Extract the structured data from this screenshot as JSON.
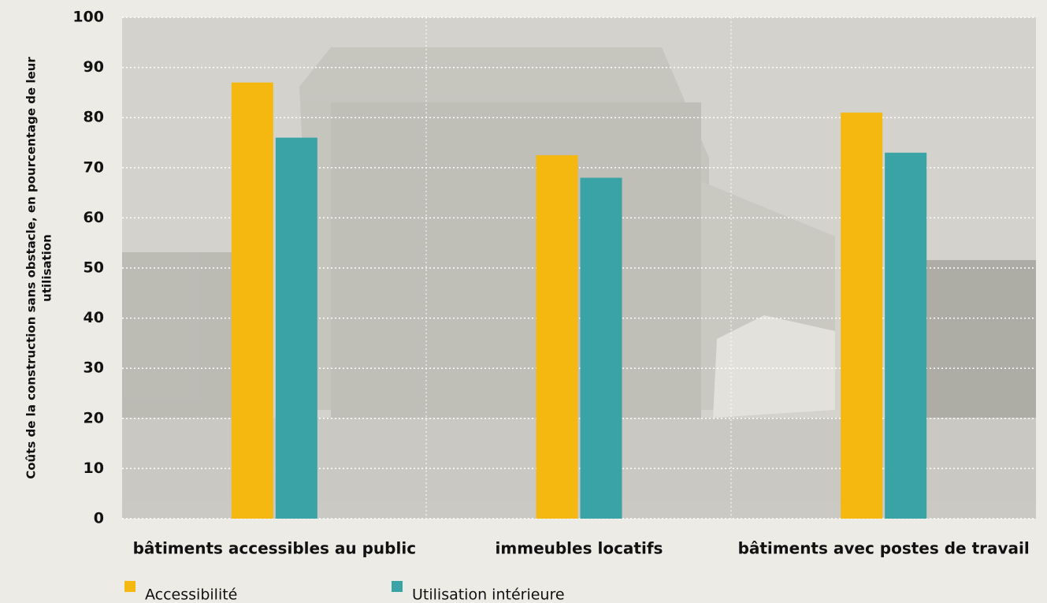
{
  "chart_data": {
    "type": "bar",
    "ylabel": [
      "Coûts de la construction sans obstacle, en pourcentage de leur",
      "utilisation"
    ],
    "categories": [
      "bâtiments accessibles au public",
      "immeubles locatifs",
      "bâtiments avec postes de travail"
    ],
    "series": [
      {
        "name": "Accessibilité",
        "color": "#f4b811",
        "values": [
          87,
          72.5,
          81
        ]
      },
      {
        "name": "Utilisation intérieure",
        "color": "#39a3a5",
        "values": [
          76,
          68,
          73
        ]
      }
    ],
    "ylim": [
      0,
      100
    ],
    "yticks": [
      0,
      10,
      20,
      30,
      40,
      50,
      60,
      70,
      80,
      90,
      100
    ],
    "grid": true
  }
}
